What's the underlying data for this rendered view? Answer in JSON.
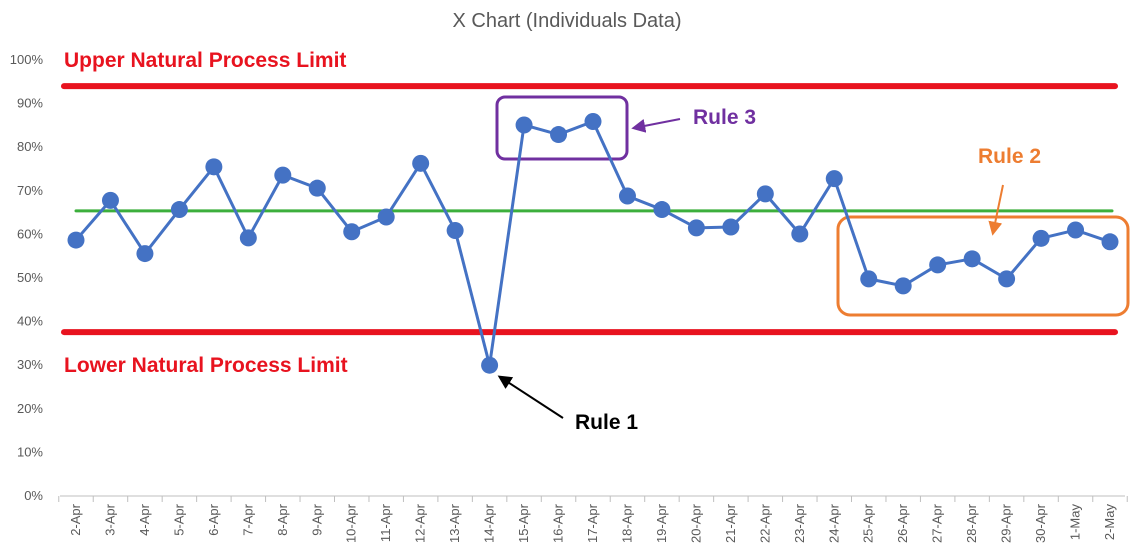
{
  "chart_data": {
    "type": "line",
    "title": "X Chart (Individuals Data)",
    "xlabel": "",
    "ylabel": "",
    "ylim": [
      0,
      100
    ],
    "yticks": [
      "0%",
      "10%",
      "20%",
      "30%",
      "40%",
      "50%",
      "60%",
      "70%",
      "80%",
      "90%",
      "100%"
    ],
    "categories": [
      "2-Apr",
      "3-Apr",
      "4-Apr",
      "5-Apr",
      "6-Apr",
      "7-Apr",
      "8-Apr",
      "9-Apr",
      "10-Apr",
      "11-Apr",
      "12-Apr",
      "13-Apr",
      "14-Apr",
      "15-Apr",
      "16-Apr",
      "17-Apr",
      "18-Apr",
      "19-Apr",
      "20-Apr",
      "21-Apr",
      "22-Apr",
      "23-Apr",
      "24-Apr",
      "25-Apr",
      "26-Apr",
      "27-Apr",
      "28-Apr",
      "29-Apr",
      "30-Apr",
      "1-May",
      "2-May"
    ],
    "series": [
      {
        "name": "",
        "color": "#4472C4",
        "values": [
          58.7,
          67.8,
          55.6,
          65.7,
          75.5,
          59.2,
          73.6,
          70.6,
          60.6,
          64.0,
          76.3,
          60.9,
          30.0,
          85.1,
          82.9,
          85.9,
          68.8,
          65.7,
          61.5,
          61.7,
          69.3,
          60.1,
          72.8,
          49.8,
          48.2,
          53.0,
          54.4,
          49.8,
          59.1,
          61.0,
          58.3
        ]
      }
    ],
    "reference_lines": [
      {
        "label": "Upper Natural Process Limit",
        "value": 94.0,
        "color": "#E8131F"
      },
      {
        "label": "",
        "value": 65.4,
        "color": "#3CAF3C"
      },
      {
        "label": "Lower Natural Process Limit",
        "value": 37.6,
        "color": "#E8131F"
      }
    ],
    "annotations": [
      {
        "label": "Rule 1",
        "color": "#000000"
      },
      {
        "label": "Rule 2",
        "color": "#ED7D31"
      },
      {
        "label": "Rule 3",
        "color": "#7030A0"
      }
    ],
    "grid": false,
    "legend": "none"
  }
}
